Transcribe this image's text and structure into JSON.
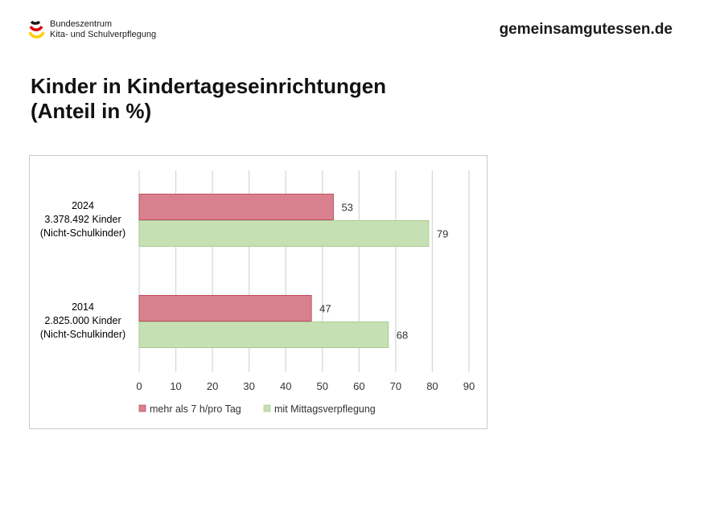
{
  "header": {
    "logo_line1": "Bundeszentrum",
    "logo_line2": "Kita- und Schulverpflegung",
    "site_url": "gemeinsamgutessen.de"
  },
  "title_line1": "Kinder in Kindertageseinrichtungen",
  "title_line2": "(Anteil in %)",
  "colors": {
    "series1": "#d9808e",
    "series1_border": "#c0505f",
    "series2": "#c6e0b4",
    "series2_border": "#a9cd91",
    "grid": "#d9d9d9",
    "logo_black": "#1a1a1a",
    "logo_red": "#dd0000",
    "logo_gold": "#ffce00"
  },
  "chart_data": {
    "type": "bar",
    "orientation": "horizontal",
    "categories": [
      [
        "2024",
        "3.378.492 Kinder",
        "(Nicht-Schulkinder)"
      ],
      [
        "2014",
        "2.825.000 Kinder",
        "(Nicht-Schulkinder)"
      ]
    ],
    "series": [
      {
        "name": "mehr als 7 h/pro Tag",
        "values": [
          53,
          47
        ]
      },
      {
        "name": "mit Mittagsverpflegung",
        "values": [
          79,
          68
        ]
      }
    ],
    "xlim": [
      0,
      90
    ],
    "xticks": [
      0,
      10,
      20,
      30,
      40,
      50,
      60,
      70,
      80,
      90
    ],
    "grid": true,
    "legend": "bottom"
  }
}
